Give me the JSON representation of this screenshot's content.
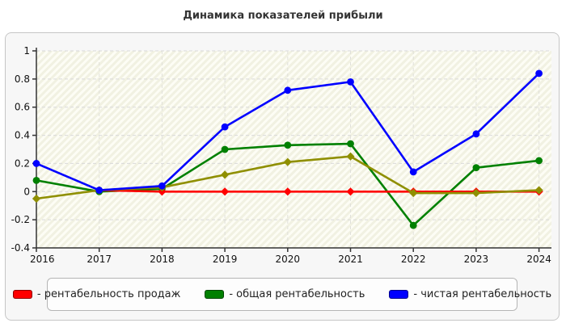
{
  "page": {
    "title": "Динамика показателей прибыли"
  },
  "colors": {
    "panel_bg": "#f7f7f7",
    "panel_border": "#c6c6c6",
    "plot_bg": "#fdfdf5",
    "plot_hatch": "#f1f1e2",
    "gridline": "#d9d9d9",
    "axis": "#333333",
    "tick_label": "#111111",
    "series_red": "#ff0000",
    "series_green": "#008000",
    "series_blue": "#0000ff",
    "series_olive": "#8f8f00"
  },
  "legend": {
    "items": [
      {
        "label": "- рентабельность продаж",
        "color": "#ff0000"
      },
      {
        "label": "- общая рентабельность",
        "color": "#008000"
      },
      {
        "label": "- чистая рентабельность",
        "color": "#0000ff"
      }
    ]
  },
  "chart_data": {
    "type": "line",
    "title": "Динамика показателей прибыли",
    "categories": [
      "2016",
      "2017",
      "2018",
      "2019",
      "2020",
      "2021",
      "2022",
      "2023",
      "2024"
    ],
    "ylim": [
      -0.4,
      1
    ],
    "ytick_step": 0.2,
    "ytick_labels": [
      "1",
      "0.8",
      "0.6",
      "0.4",
      "0.2",
      "0",
      "-0.2",
      "-0.4"
    ],
    "grid": true,
    "legend_position": "bottom",
    "series": [
      {
        "name": "рентабельность продаж",
        "color": "#ff0000",
        "marker": "diamond",
        "in_legend": true,
        "values": [
          null,
          0.01,
          0,
          0,
          0,
          0,
          0,
          0,
          0
        ]
      },
      {
        "name": "общая рентабельность",
        "color": "#008000",
        "marker": "circle",
        "in_legend": true,
        "values": [
          0.08,
          0,
          0.02,
          0.3,
          0.33,
          0.34,
          -0.24,
          0.17,
          0.22
        ]
      },
      {
        "name": "чистая рентабельность",
        "color": "#0000ff",
        "marker": "circle",
        "in_legend": true,
        "values": [
          0.2,
          0.01,
          0.04,
          0.46,
          0.72,
          0.78,
          0.14,
          0.41,
          0.84
        ]
      },
      {
        "name": "",
        "color": "#8f8f00",
        "marker": "diamond",
        "in_legend": false,
        "values": [
          -0.05,
          0.01,
          0.03,
          0.12,
          0.21,
          0.25,
          -0.01,
          -0.01,
          0.01
        ]
      }
    ]
  }
}
